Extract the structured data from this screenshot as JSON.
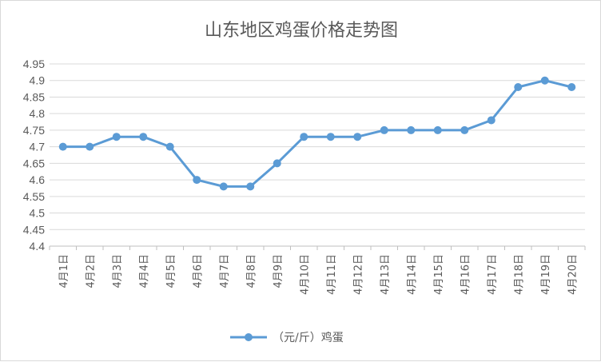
{
  "chart_data": {
    "type": "line",
    "title": "山东地区鸡蛋价格走势图",
    "categories": [
      "4月1日",
      "4月2日",
      "4月3日",
      "4月4日",
      "4月5日",
      "4月6日",
      "4月7日",
      "4月8日",
      "4月9日",
      "4月10日",
      "4月11日",
      "4月12日",
      "4月13日",
      "4月14日",
      "4月15日",
      "4月16日",
      "4月17日",
      "4月18日",
      "4月19日",
      "4月20日"
    ],
    "series": [
      {
        "name": "（元/斤）鸡蛋",
        "color": "#5b9bd5",
        "values": [
          4.7,
          4.7,
          4.73,
          4.73,
          4.7,
          4.6,
          4.58,
          4.58,
          4.65,
          4.73,
          4.73,
          4.73,
          4.75,
          4.75,
          4.75,
          4.75,
          4.78,
          4.88,
          4.9,
          4.88
        ]
      }
    ],
    "yticks": [
      "4.4",
      "4.45",
      "4.5",
      "4.55",
      "4.6",
      "4.65",
      "4.7",
      "4.75",
      "4.8",
      "4.85",
      "4.9",
      "4.95"
    ],
    "ylim": [
      4.4,
      4.95
    ],
    "grid": true,
    "legend": "bottom"
  }
}
